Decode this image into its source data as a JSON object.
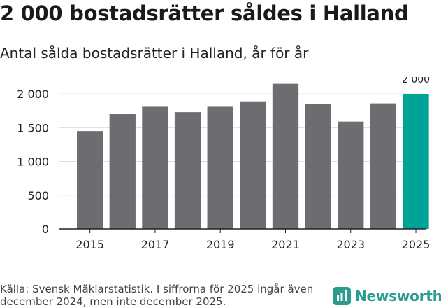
{
  "header": {
    "title": "2 000 bostadsrätter såldes i Halland",
    "subtitle": "Antal sålda bostadsrätter i Halland, år för år"
  },
  "chart_data": {
    "type": "bar",
    "title": "2 000 bostadsrätter såldes i Halland",
    "subtitle": "Antal sålda bostadsrätter i Halland, år för år",
    "xlabel": "",
    "ylabel": "",
    "categories": [
      "2015",
      "2016",
      "2017",
      "2018",
      "2019",
      "2020",
      "2021",
      "2022",
      "2023",
      "2024",
      "2025"
    ],
    "x_tick_labels": [
      "2015",
      "2017",
      "2019",
      "2021",
      "2023",
      "2025"
    ],
    "values": [
      1450,
      1700,
      1810,
      1730,
      1810,
      1890,
      2150,
      1850,
      1590,
      1860,
      2000
    ],
    "highlight_index": 10,
    "highlight_label": "2 000",
    "ylim": [
      0,
      2250
    ],
    "y_ticks": [
      0,
      500,
      1000,
      1500,
      2000
    ],
    "y_tick_labels": [
      "0",
      "500",
      "1 000",
      "1 500",
      "2 000"
    ],
    "grid": true,
    "colors": {
      "bar": "#6d6c70",
      "highlight": "#00a398",
      "grid": "#dddddd",
      "axis": "#222222"
    }
  },
  "footer": {
    "source": "Källa: Svensk Mäklarstatistik. I siffrorna för 2025 ingår även december 2024, men inte december 2025.",
    "brand": "Newsworthy",
    "brand_icon": "newsworthy-logo-icon",
    "brand_color": "#2a9d8f"
  }
}
